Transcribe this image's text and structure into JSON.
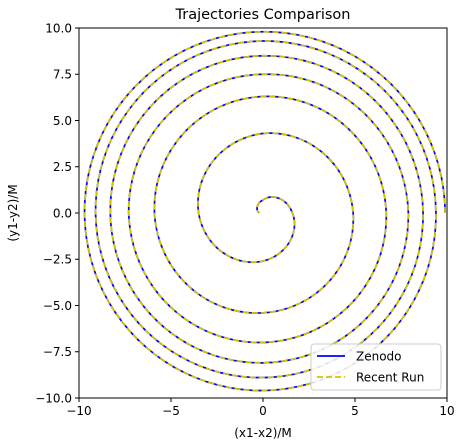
{
  "chart_data": {
    "type": "line",
    "title": "Trajectories Comparison",
    "xlabel": "(x1-x2)/M",
    "ylabel": "(y1-y2)/M",
    "xlim": [
      -10,
      10
    ],
    "ylim": [
      -10,
      10
    ],
    "xticks": [
      -10,
      -5,
      0,
      5,
      10
    ],
    "yticks": [
      -10.0,
      -7.5,
      -5.0,
      -2.5,
      0.0,
      2.5,
      5.0,
      7.5,
      10.0
    ],
    "xtick_labels": [
      "−10",
      "−5",
      "0",
      "5",
      "10"
    ],
    "ytick_labels": [
      "−10.0",
      "−7.5",
      "−5.0",
      "−2.5",
      "0.0",
      "2.5",
      "5.0",
      "7.5",
      "10.0"
    ],
    "grid": false,
    "legend_position": "lower-right",
    "series": [
      {
        "name": "Zenodo",
        "color": "#0000ff",
        "style": "solid"
      },
      {
        "name": "Recent Run",
        "color": "#d4c400",
        "style": "dashed"
      }
    ],
    "trajectory": {
      "description": "inspiral spiral, counter-clockwise, radius shrinking toward the origin",
      "samples": [
        {
          "x": 9.9,
          "y": 0.0
        },
        {
          "x": 0.0,
          "y": 9.8
        },
        {
          "x": -9.7,
          "y": 0.0
        },
        {
          "x": 0.0,
          "y": -9.6
        },
        {
          "x": 9.4,
          "y": 0.0
        },
        {
          "x": 0.0,
          "y": 9.3
        },
        {
          "x": -9.1,
          "y": 0.0
        },
        {
          "x": 0.0,
          "y": -8.9
        },
        {
          "x": 8.7,
          "y": 0.0
        },
        {
          "x": 0.0,
          "y": 8.5
        },
        {
          "x": -8.3,
          "y": 0.0
        },
        {
          "x": 0.0,
          "y": -8.1
        },
        {
          "x": 7.9,
          "y": 0.0
        },
        {
          "x": 0.0,
          "y": 7.5
        },
        {
          "x": -7.3,
          "y": 0.0
        },
        {
          "x": 0.0,
          "y": -7.0
        },
        {
          "x": 6.7,
          "y": 0.0
        },
        {
          "x": 0.0,
          "y": 6.3
        },
        {
          "x": -5.9,
          "y": 0.0
        },
        {
          "x": 0.0,
          "y": -5.4
        },
        {
          "x": 4.9,
          "y": 0.0
        },
        {
          "x": 0.0,
          "y": 4.3
        },
        {
          "x": -3.5,
          "y": 0.0
        },
        {
          "x": 0.0,
          "y": -2.6
        },
        {
          "x": 1.6,
          "y": 0.0
        },
        {
          "x": 0.0,
          "y": 0.7
        },
        {
          "x": -0.2,
          "y": 0.0
        }
      ]
    }
  }
}
